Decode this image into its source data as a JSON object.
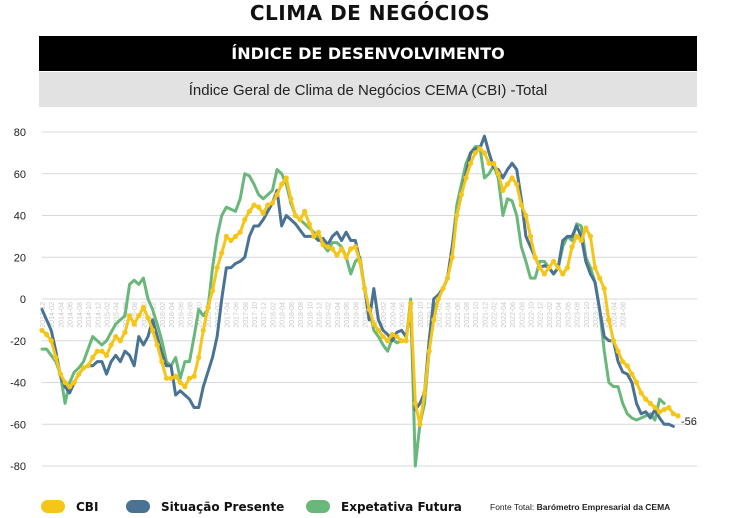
{
  "header": {
    "title": "CLIMA DE NEGÓCIOS",
    "banner": "ÍNDICE DE DESENVOLVIMENTO",
    "subtitle": "Índice Geral de Clima de Negócios CEMA (CBI) -Total"
  },
  "source": {
    "prefix": "Fonte Total:",
    "name": "Barómetro Empresarial da CEMA"
  },
  "chart_data": {
    "type": "line",
    "ylim": [
      -80,
      80
    ],
    "yticks": [
      "80",
      "60",
      "40",
      "20",
      "0",
      "-20",
      "-40",
      "-60",
      "-80"
    ],
    "grid": true,
    "legend": "bottom",
    "x_start": "2013-12",
    "x_step_months": 1,
    "tick_labels": [
      "2013-12",
      "2014-02",
      "2014-04",
      "2014-06",
      "2014-08",
      "2014-10",
      "2014-12",
      "2015-02",
      "2015-04",
      "2015-06",
      "2015-08",
      "2015-10",
      "2015-12",
      "2016-02",
      "2016-04",
      "2016-06",
      "2016-08",
      "2016-10",
      "2016-12",
      "2017-02",
      "2017-04",
      "2017-06",
      "2017-08",
      "2017-10",
      "2017-12",
      "2018-02",
      "2018-04",
      "2018-06",
      "2018-08",
      "2018-10",
      "2018-12",
      "2019-02",
      "2019-04",
      "2019-06",
      "2019-08",
      "2019-10",
      "2019-12",
      "2020-02",
      "2020-04",
      "2020-06",
      "2020-08",
      "2020-10",
      "2020-12",
      "2021-02",
      "2021-04",
      "2021-06",
      "2021-08",
      "2021-10",
      "2021-12",
      "2022-02",
      "2022-04",
      "2022-06",
      "2022-08",
      "2022-10",
      "2022-12",
      "2023-02",
      "2023-04",
      "2023-06",
      "2023-08",
      "2023-10",
      "2023-12",
      "2024-02",
      "2024-04",
      "2024-06"
    ],
    "last_value_label": "-56",
    "series": [
      {
        "name": "CBI",
        "color": "#f5c518",
        "values": [
          -15,
          -17,
          -20,
          -28,
          -36,
          -40,
          -42,
          -40,
          -36,
          -33,
          -32,
          -28,
          -25,
          -25,
          -27,
          -22,
          -18,
          -20,
          -16,
          -8,
          -12,
          -8,
          -4,
          -9,
          -15,
          -22,
          -30,
          -38,
          -38,
          -37,
          -40,
          -42,
          -38,
          -37,
          -28,
          -15,
          -4,
          4,
          15,
          22,
          30,
          28,
          30,
          32,
          38,
          42,
          45,
          44,
          41,
          45,
          46,
          50,
          55,
          58,
          48,
          40,
          38,
          42,
          36,
          30,
          32,
          26,
          25,
          24,
          21,
          24,
          20,
          24,
          25,
          18,
          5,
          -5,
          -12,
          -15,
          -18,
          -20,
          -17,
          -18,
          -20,
          -20,
          -2,
          -50,
          -60,
          -45,
          -25,
          -10,
          0,
          5,
          10,
          20,
          40,
          50,
          58,
          65,
          70,
          72,
          70,
          65,
          65,
          60,
          52,
          55,
          58,
          55,
          45,
          40,
          30,
          20,
          15,
          12,
          15,
          18,
          15,
          12,
          15,
          25,
          30,
          28,
          34,
          30,
          15,
          10,
          5,
          -10,
          -20,
          -25,
          -30,
          -32,
          -36,
          -40,
          -45,
          -48,
          -50,
          -52,
          -54,
          -53,
          -52,
          -55,
          -56
        ]
      },
      {
        "name": "Situação Presente",
        "color": "#4a7293",
        "values": [
          -5,
          -10,
          -15,
          -25,
          -37,
          -42,
          -45,
          -40,
          -36,
          -33,
          -32,
          -32,
          -30,
          -30,
          -36,
          -30,
          -27,
          -30,
          -25,
          -27,
          -32,
          -18,
          -22,
          -18,
          -10,
          -18,
          -26,
          -32,
          -32,
          -46,
          -44,
          -46,
          -48,
          -52,
          -52,
          -42,
          -35,
          -28,
          -18,
          0,
          15,
          15,
          17,
          18,
          20,
          30,
          35,
          35,
          38,
          42,
          46,
          52,
          35,
          40,
          38,
          36,
          33,
          30,
          30,
          30,
          28,
          29,
          26,
          30,
          32,
          28,
          32,
          28,
          28,
          18,
          5,
          -10,
          5,
          -10,
          -15,
          -17,
          -20,
          -16,
          -15,
          -18,
          -6,
          -53,
          -50,
          -45,
          -20,
          0,
          2,
          5,
          10,
          25,
          40,
          50,
          60,
          70,
          72,
          72,
          78,
          70,
          63,
          62,
          58,
          62,
          65,
          62,
          48,
          30,
          25,
          20,
          15,
          16,
          15,
          12,
          15,
          28,
          30,
          30,
          35,
          30,
          18,
          12,
          8,
          -5,
          -18,
          -20,
          -20,
          -30,
          -35,
          -36,
          -40,
          -50,
          -55,
          -54,
          -57,
          -53,
          -57,
          -60,
          -60,
          -61
        ]
      },
      {
        "name": "Expetativa Futura",
        "color": "#6ab77c",
        "values": [
          -24,
          -24,
          -27,
          -30,
          -36,
          -50,
          -40,
          -35,
          -33,
          -30,
          -24,
          -18,
          -20,
          -22,
          -20,
          -16,
          -12,
          -10,
          -8,
          7,
          9,
          7,
          10,
          0,
          -5,
          -12,
          -20,
          -30,
          -32,
          -28,
          -38,
          -30,
          -30,
          -18,
          -5,
          -8,
          -5,
          15,
          30,
          40,
          44,
          43,
          42,
          48,
          60,
          59,
          55,
          50,
          48,
          50,
          52,
          62,
          60,
          55,
          46,
          40,
          38,
          36,
          34,
          32,
          30,
          26,
          23,
          27,
          27,
          25,
          20,
          12,
          18,
          20,
          5,
          -5,
          -15,
          -18,
          -22,
          -25,
          -19,
          -21,
          -20,
          -20,
          0,
          -80,
          -60,
          -50,
          -25,
          -5,
          0,
          5,
          10,
          25,
          45,
          55,
          65,
          70,
          73,
          73,
          58,
          60,
          64,
          58,
          40,
          48,
          47,
          40,
          25,
          18,
          10,
          10,
          18,
          18,
          15,
          12,
          15,
          25,
          30,
          28,
          36,
          35,
          20,
          15,
          8,
          -5,
          -25,
          -40,
          -42,
          -42,
          -50,
          -55,
          -57,
          -58,
          -57,
          -56,
          -55,
          -58,
          -48,
          -50
        ]
      }
    ]
  }
}
